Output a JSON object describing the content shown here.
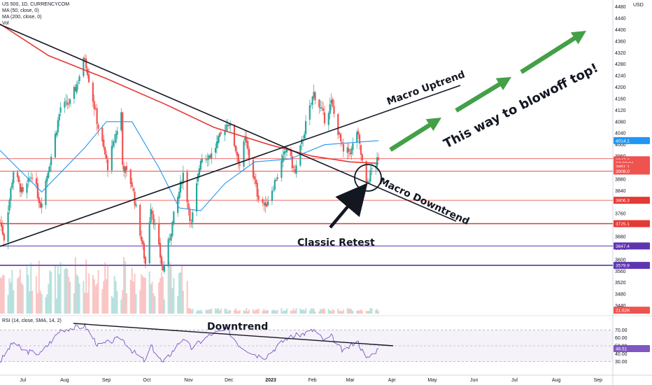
{
  "header": {
    "symbol_line": "US 500, 1D, CURRENCYCOM",
    "ma50_line": "MA (50, close, 0)",
    "ma200_line": "MA (200, close, 0)",
    "vol_label": "Vol",
    "rsi_line": "RSI (14, close, SMA, 14, 2)",
    "currency": "USD"
  },
  "colors": {
    "up": "#26a69a",
    "down": "#ef5350",
    "ma50": "#2196f3",
    "ma200": "#e53935",
    "rsi": "#7e57c2",
    "arrow_green": "#43a047",
    "h_red": "#e53935",
    "h_purple": "#5e35b1",
    "trend_line": "#131722"
  },
  "annotations": {
    "macro_uptrend": "Macro Uptrend",
    "macro_downtrend": "Macro Downtrend",
    "blowoff": "This way to blowoff top!",
    "classic_retest": "Classic Retest",
    "rsi_downtrend": "Downtrend"
  },
  "price_tags": [
    {
      "label": "4014.1",
      "value": 4014.1,
      "color": "#2196f3"
    },
    {
      "label": "3947.3",
      "value": 3947.3,
      "color": "#ef5350"
    },
    {
      "label": "07:30:04",
      "value": 3936,
      "color": "#ef5350"
    },
    {
      "label": "3951.1",
      "value": 3924,
      "color": "#ef5350"
    },
    {
      "label": "3908.0",
      "value": 3908,
      "color": "#ef5350"
    },
    {
      "label": "3806.3",
      "value": 3806.3,
      "color": "#e53935"
    },
    {
      "label": "3725.1",
      "value": 3725.1,
      "color": "#e53935"
    },
    {
      "label": "3647.4",
      "value": 3647.4,
      "color": "#5e35b1"
    },
    {
      "label": "3579.9",
      "value": 3579.9,
      "color": "#5e35b1"
    },
    {
      "label": "21.62K",
      "value": 3424,
      "color": "#ef5350"
    }
  ],
  "rsi_tags": [
    {
      "label": "46.51",
      "value": 46.51,
      "color": "#7e57c2"
    }
  ],
  "chart_data": {
    "type": "candlestick",
    "y_axis_ticks": [
      4480,
      4440,
      4400,
      4360,
      4320,
      4280,
      4240,
      4200,
      4160,
      4120,
      4080,
      4040,
      4000,
      3960,
      3920,
      3880,
      3840,
      3800,
      3760,
      3720,
      3680,
      3640,
      3600,
      3560,
      3520,
      3480,
      3440
    ],
    "ylim": [
      3412,
      4484
    ],
    "x_axis_labels": [
      "Jul",
      "Aug",
      "Sep",
      "Oct",
      "Nov",
      "Dec",
      "2023",
      "Feb",
      "Mar",
      "Apr",
      "May",
      "Jun",
      "Jul",
      "Aug",
      "Sep"
    ],
    "x_axis_label_dates": [
      "2022-07-01",
      "2022-08-01",
      "2022-09-01",
      "2022-10-01",
      "2022-11-01",
      "2022-12-01",
      "2023-01-01",
      "2023-02-01",
      "2023-03-01",
      "2023-04-01",
      "2023-05-01",
      "2023-06-01",
      "2023-07-01",
      "2023-08-01",
      "2023-09-01"
    ],
    "anchors": [
      [
        "2022-06-14",
        3735
      ],
      [
        "2022-06-17",
        3675
      ],
      [
        "2022-06-24",
        3910
      ],
      [
        "2022-07-01",
        3825
      ],
      [
        "2022-07-08",
        3900
      ],
      [
        "2022-07-14",
        3790
      ],
      [
        "2022-07-22",
        3960
      ],
      [
        "2022-07-29",
        4130
      ],
      [
        "2022-08-05",
        4145
      ],
      [
        "2022-08-10",
        4210
      ],
      [
        "2022-08-16",
        4305
      ],
      [
        "2022-08-19",
        4230
      ],
      [
        "2022-08-26",
        4060
      ],
      [
        "2022-09-02",
        3925
      ],
      [
        "2022-09-12",
        4110
      ],
      [
        "2022-09-13",
        3930
      ],
      [
        "2022-09-20",
        3860
      ],
      [
        "2022-09-30",
        3585
      ],
      [
        "2022-10-04",
        3790
      ],
      [
        "2022-10-13",
        3560
      ],
      [
        "2022-10-21",
        3750
      ],
      [
        "2022-10-28",
        3900
      ],
      [
        "2022-11-03",
        3720
      ],
      [
        "2022-11-10",
        3955
      ],
      [
        "2022-11-18",
        3965
      ],
      [
        "2022-11-30",
        4080
      ],
      [
        "2022-12-01",
        4075
      ],
      [
        "2022-12-09",
        3930
      ],
      [
        "2022-12-13",
        4020
      ],
      [
        "2022-12-22",
        3830
      ],
      [
        "2022-12-28",
        3785
      ],
      [
        "2023-01-06",
        3895
      ],
      [
        "2023-01-13",
        3990
      ],
      [
        "2023-01-19",
        3900
      ],
      [
        "2023-01-27",
        4070
      ],
      [
        "2023-02-02",
        4180
      ],
      [
        "2023-02-10",
        4090
      ],
      [
        "2023-02-15",
        4145
      ],
      [
        "2023-02-24",
        3970
      ],
      [
        "2023-03-02",
        3980
      ],
      [
        "2023-03-06",
        4048
      ],
      [
        "2023-03-13",
        3855
      ],
      [
        "2023-03-17",
        3915
      ],
      [
        "2023-03-22",
        3947
      ]
    ],
    "series": [
      {
        "name": "MA (50, close, 0)",
        "points": [
          [
            "2022-06-14",
            3980
          ],
          [
            "2022-07-15",
            3835
          ],
          [
            "2022-08-16",
            3990
          ],
          [
            "2022-09-01",
            4080
          ],
          [
            "2022-09-20",
            4080
          ],
          [
            "2022-10-10",
            3920
          ],
          [
            "2022-10-25",
            3780
          ],
          [
            "2022-11-10",
            3770
          ],
          [
            "2022-11-28",
            3865
          ],
          [
            "2022-12-20",
            3940
          ],
          [
            "2023-01-15",
            3950
          ],
          [
            "2023-02-10",
            4000
          ],
          [
            "2023-03-10",
            4010
          ],
          [
            "2023-03-22",
            4014.1
          ]
        ]
      },
      {
        "name": "MA (200, close, 0)",
        "points": [
          [
            "2022-06-14",
            4420
          ],
          [
            "2022-07-20",
            4310
          ],
          [
            "2022-09-01",
            4230
          ],
          [
            "2022-10-15",
            4140
          ],
          [
            "2022-11-20",
            4060
          ],
          [
            "2022-12-31",
            4000
          ],
          [
            "2023-02-01",
            3960
          ],
          [
            "2023-03-01",
            3940
          ],
          [
            "2023-03-22",
            3935
          ]
        ]
      }
    ],
    "rsi": {
      "label": "RSI (14, close, SMA, 14, 2)",
      "ticks": [
        70,
        60,
        50,
        40,
        30
      ],
      "ylim": [
        20,
        80
      ],
      "points": [
        [
          "2022-06-14",
          30
        ],
        [
          "2022-06-24",
          55
        ],
        [
          "2022-07-01",
          44
        ],
        [
          "2022-07-14",
          40
        ],
        [
          "2022-07-29",
          70
        ],
        [
          "2022-08-16",
          75
        ],
        [
          "2022-08-26",
          50
        ],
        [
          "2022-09-12",
          60
        ],
        [
          "2022-09-20",
          44
        ],
        [
          "2022-09-30",
          30
        ],
        [
          "2022-10-04",
          50
        ],
        [
          "2022-10-13",
          28
        ],
        [
          "2022-10-28",
          60
        ],
        [
          "2022-11-03",
          47
        ],
        [
          "2022-11-18",
          65
        ],
        [
          "2022-11-30",
          70
        ],
        [
          "2022-12-09",
          50
        ],
        [
          "2022-12-22",
          38
        ],
        [
          "2022-12-28",
          36
        ],
        [
          "2023-01-13",
          60
        ],
        [
          "2023-01-27",
          66
        ],
        [
          "2023-02-02",
          70
        ],
        [
          "2023-02-10",
          56
        ],
        [
          "2023-02-15",
          62
        ],
        [
          "2023-02-24",
          42
        ],
        [
          "2023-03-06",
          58
        ],
        [
          "2023-03-13",
          33
        ],
        [
          "2023-03-22",
          46.51
        ]
      ]
    },
    "horizontal_levels": [
      3951.1,
      3908,
      3806.3,
      3725.1,
      3647.4,
      3579.9
    ]
  }
}
